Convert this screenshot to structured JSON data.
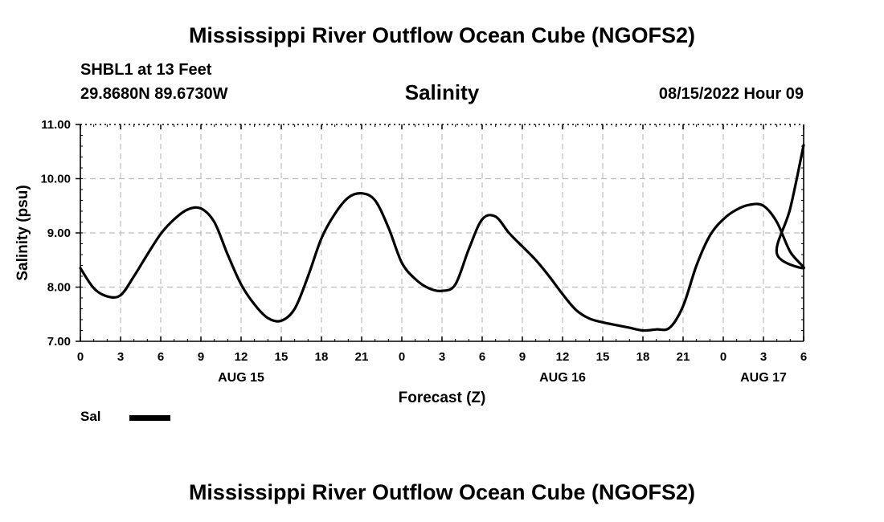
{
  "chart_data": {
    "type": "line",
    "title": "Mississippi River Outflow Ocean Cube (NGOFS2)",
    "footer_title": "Mississippi River Outflow Ocean Cube (NGOFS2)",
    "subtitle": "Salinity",
    "station": "SHBL1 at 13 Feet",
    "location": "29.8680N  89.6730W",
    "datetime": "08/15/2022 Hour 09",
    "xlabel": "Forecast (Z)",
    "ylabel": "Salinity (psu)",
    "ylim": [
      7.0,
      11.0
    ],
    "yticks": [
      "7.00",
      "8.00",
      "9.00",
      "10.00",
      "11.00"
    ],
    "xlim": [
      0,
      54
    ],
    "xtick_values": [
      0,
      3,
      6,
      9,
      12,
      15,
      18,
      21,
      24,
      27,
      30,
      33,
      36,
      39,
      42,
      45,
      48,
      51,
      54
    ],
    "xtick_labels": [
      "0",
      "3",
      "6",
      "9",
      "12",
      "15",
      "18",
      "21",
      "0",
      "3",
      "6",
      "9",
      "12",
      "15",
      "18",
      "21",
      "0",
      "3",
      "6"
    ],
    "date_labels": [
      {
        "label": "AUG 15",
        "x": 12
      },
      {
        "label": "AUG 16",
        "x": 36
      },
      {
        "label": "AUG 17",
        "x": 51
      }
    ],
    "grid": true,
    "legend": "bottom-left",
    "series": [
      {
        "name": "Sal",
        "x": [
          0,
          1,
          2,
          3,
          4,
          5,
          6,
          7,
          8,
          9,
          10,
          11,
          12,
          13,
          14,
          15,
          16,
          17,
          18,
          19,
          20,
          21,
          22,
          23,
          24,
          25,
          26,
          27,
          28,
          29,
          30,
          31,
          32,
          33,
          34,
          35,
          36,
          37,
          38,
          39,
          40,
          41,
          42,
          43,
          44,
          45,
          46,
          47,
          48,
          49,
          50,
          51,
          52,
          53,
          54
        ],
        "values": [
          8.35,
          7.98,
          7.83,
          7.85,
          8.2,
          8.6,
          8.98,
          9.25,
          9.43,
          9.45,
          9.2,
          8.6,
          8.05,
          7.68,
          7.43,
          7.38,
          7.6,
          8.2,
          8.9,
          9.35,
          9.65,
          9.73,
          9.6,
          9.1,
          8.45,
          8.15,
          7.98,
          7.93,
          8.05,
          8.7,
          9.25,
          9.3,
          9.0,
          8.75,
          8.5,
          8.2,
          7.87,
          7.58,
          7.42,
          7.35,
          7.3,
          7.25,
          7.2,
          7.22,
          7.25,
          7.65,
          8.4,
          8.95,
          9.25,
          9.43,
          9.52,
          9.5,
          9.2,
          8.65,
          8.35
        ],
        "tail_x": [
          51,
          52,
          53,
          54
        ],
        "tail_values": [
          8.35,
          8.62,
          9.45,
          10.62
        ]
      }
    ]
  }
}
